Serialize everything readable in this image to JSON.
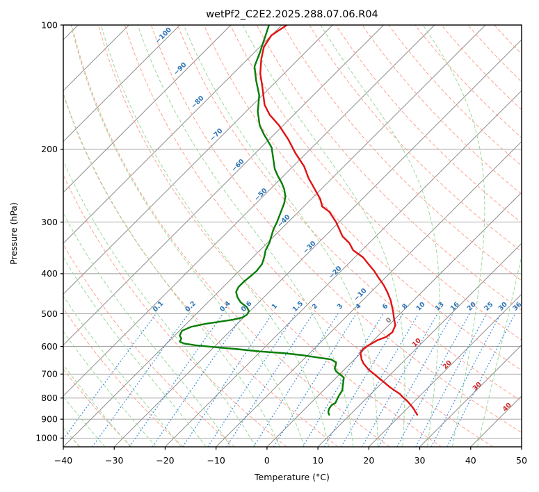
{
  "title": "wetPf2_C2E2.2025.288.07.06.R04",
  "chart_data": {
    "type": "skewt-log-p",
    "xlabel": "Temperature (°C)",
    "ylabel": "Pressure (hPa)",
    "xlim": [
      -40,
      50
    ],
    "pressure_lim": [
      100,
      1050
    ],
    "skew": "45deg",
    "grid": "on",
    "x_ticks": [
      -40,
      -30,
      -20,
      -10,
      0,
      10,
      20,
      30,
      40,
      50
    ],
    "x_tick_labels": [
      "−40",
      "−30",
      "−20",
      "−10",
      "0",
      "10",
      "20",
      "30",
      "40",
      "50"
    ],
    "y_ticks": [
      100,
      200,
      300,
      400,
      500,
      600,
      700,
      800,
      900,
      1000
    ],
    "y_tick_labels": [
      "100",
      "200",
      "300",
      "400",
      "500",
      "600",
      "700",
      "800",
      "900",
      "1000"
    ],
    "isotherm_step_c": 10,
    "isotherm_labels": [
      {
        "value": -100,
        "label": "−100"
      },
      {
        "value": -90,
        "label": "−90"
      },
      {
        "value": -80,
        "label": "−80"
      },
      {
        "value": -70,
        "label": "−70"
      },
      {
        "value": -60,
        "label": "−60"
      },
      {
        "value": -50,
        "label": "−50"
      },
      {
        "value": -40,
        "label": "−40"
      },
      {
        "value": -30,
        "label": "−30"
      },
      {
        "value": -20,
        "label": "−20"
      },
      {
        "value": -10,
        "label": "−10"
      },
      {
        "value": 0,
        "label": "0"
      },
      {
        "value": 10,
        "label": "10"
      },
      {
        "value": 20,
        "label": "20"
      },
      {
        "value": 30,
        "label": "30"
      },
      {
        "value": 40,
        "label": "40"
      }
    ],
    "mixing_ratio_lines": {
      "values_g_per_kg": [
        0.1,
        0.2,
        0.4,
        0.6,
        1,
        1.5,
        2,
        3,
        4,
        6,
        8,
        10,
        13,
        16,
        20,
        25,
        30,
        36
      ],
      "labels": [
        "0.1",
        "0.2",
        "0.4",
        "0.6",
        "1",
        "1.5",
        "2",
        "3",
        "4",
        "6",
        "8",
        "10",
        "13",
        "16",
        "20",
        "25",
        "30",
        "36"
      ],
      "top_pressure": 500,
      "bottom_pressure": 1050
    },
    "dry_adiabats": {
      "theta_start_c": -40,
      "theta_end_c": 200,
      "step_c": 10
    },
    "moist_adiabats": {
      "thetaw_start_c": -45,
      "thetaw_end_c": 40,
      "step_c": 5
    },
    "series": [
      {
        "name": "temperature",
        "color": "#e01212",
        "points_p_hpa_t_c": [
          [
            100,
            -79
          ],
          [
            106,
            -80
          ],
          [
            113,
            -79.2
          ],
          [
            121,
            -77.3
          ],
          [
            131,
            -74.7
          ],
          [
            141,
            -71.7
          ],
          [
            156,
            -67.7
          ],
          [
            165,
            -64.7
          ],
          [
            175,
            -60.8
          ],
          [
            189,
            -56.3
          ],
          [
            204,
            -52.2
          ],
          [
            220,
            -47.8
          ],
          [
            235,
            -44.6
          ],
          [
            245,
            -42.3
          ],
          [
            264,
            -38.2
          ],
          [
            275,
            -36.4
          ],
          [
            283,
            -34
          ],
          [
            300,
            -30.6
          ],
          [
            325,
            -26.5
          ],
          [
            337,
            -23.9
          ],
          [
            351,
            -21.7
          ],
          [
            365,
            -18.4
          ],
          [
            379,
            -16
          ],
          [
            394,
            -13.5
          ],
          [
            410,
            -11.2
          ],
          [
            426,
            -8.9
          ],
          [
            443,
            -6.8
          ],
          [
            464,
            -4.5
          ],
          [
            493,
            -1.9
          ],
          [
            517,
            0
          ],
          [
            533,
            1.3
          ],
          [
            554,
            2.1
          ],
          [
            569,
            1.8
          ],
          [
            580,
            0.7
          ],
          [
            596,
            0
          ],
          [
            608,
            -0.4
          ],
          [
            622,
            -0.1
          ],
          [
            645,
            1.4
          ],
          [
            660,
            2.6
          ],
          [
            683,
            4.8
          ],
          [
            705,
            7.3
          ],
          [
            727,
            9.7
          ],
          [
            752,
            12.3
          ],
          [
            767,
            14
          ],
          [
            782,
            15.7
          ],
          [
            798,
            17.1
          ],
          [
            813,
            18.5
          ],
          [
            829,
            19.8
          ],
          [
            849,
            21.3
          ],
          [
            878,
            23.2
          ]
        ]
      },
      {
        "name": "dewpoint",
        "color": "#077d07",
        "points_p_hpa_t_c": [
          [
            100,
            -82.5
          ],
          [
            116,
            -79
          ],
          [
            126,
            -77.2
          ],
          [
            136,
            -74.2
          ],
          [
            148,
            -70.6
          ],
          [
            162,
            -67.7
          ],
          [
            175,
            -64.6
          ],
          [
            184,
            -62
          ],
          [
            191,
            -59.9
          ],
          [
            198,
            -57.9
          ],
          [
            206,
            -56.3
          ],
          [
            223,
            -53.1
          ],
          [
            232,
            -51.1
          ],
          [
            241,
            -49
          ],
          [
            250,
            -47.2
          ],
          [
            260,
            -45.6
          ],
          [
            270,
            -44.5
          ],
          [
            300,
            -42.2
          ],
          [
            312,
            -41.5
          ],
          [
            325,
            -40.5
          ],
          [
            337,
            -39.6
          ],
          [
            351,
            -38.9
          ],
          [
            365,
            -37.8
          ],
          [
            379,
            -36.9
          ],
          [
            394,
            -36.6
          ],
          [
            402,
            -36.7
          ],
          [
            418,
            -37
          ],
          [
            431,
            -37
          ],
          [
            443,
            -36.5
          ],
          [
            456,
            -35.2
          ],
          [
            469,
            -33.6
          ],
          [
            482,
            -31.4
          ],
          [
            493,
            -30.2
          ],
          [
            503,
            -29.9
          ],
          [
            511,
            -30.3
          ],
          [
            517,
            -31.7
          ],
          [
            523,
            -34
          ],
          [
            529,
            -36.3
          ],
          [
            538,
            -38.5
          ],
          [
            550,
            -39.5
          ],
          [
            565,
            -39
          ],
          [
            574,
            -38.1
          ],
          [
            584,
            -37.8
          ],
          [
            590,
            -36.7
          ],
          [
            596,
            -34.1
          ],
          [
            602,
            -30
          ],
          [
            609,
            -25.1
          ],
          [
            617,
            -20.1
          ],
          [
            623,
            -15
          ],
          [
            630,
            -11
          ],
          [
            639,
            -7.2
          ],
          [
            645,
            -4.6
          ],
          [
            656,
            -3
          ],
          [
            670,
            -2.4
          ],
          [
            677,
            -2.2
          ],
          [
            690,
            -1.2
          ],
          [
            702,
            0.2
          ],
          [
            714,
            1.5
          ],
          [
            740,
            2.6
          ],
          [
            767,
            3.7
          ],
          [
            791,
            4.1
          ],
          [
            822,
            4.8
          ],
          [
            832,
            4.5
          ],
          [
            849,
            4.7
          ],
          [
            865,
            5.2
          ],
          [
            878,
            5.9
          ]
        ]
      }
    ]
  },
  "colors": {
    "temperature_line": "#e01212",
    "dewpoint_line": "#077d07",
    "isotherm_line": "#8c8c8c",
    "pressure_gridline": "#9a9a9a",
    "dry_adiabat": "#ffa08e",
    "moist_adiabat": "#99d899",
    "mixing_ratio_line": "#3f8fdc",
    "label_blue": "#2e74b5",
    "label_red": "#cf2b2b",
    "label_gray": "#808080",
    "axis": "#000000",
    "background": "#ffffff"
  }
}
